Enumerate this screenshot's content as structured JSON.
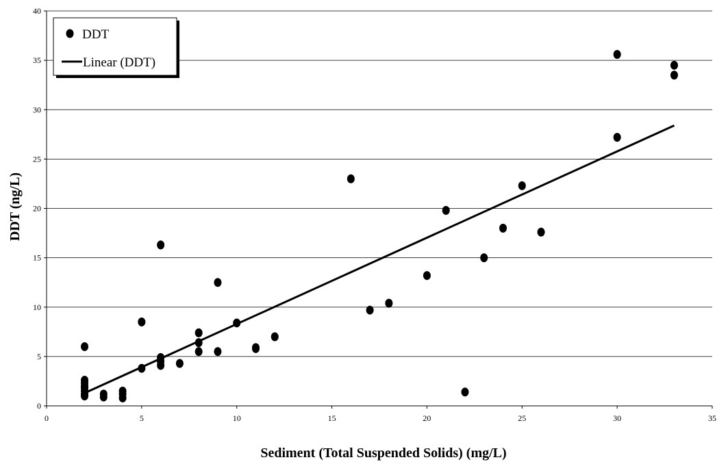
{
  "chart_data": {
    "type": "scatter",
    "xlabel": "Sediment (Total Suspended Solids) (mg/L)",
    "ylabel": "DDT (ng/L)",
    "xlim": [
      0,
      35
    ],
    "ylim": [
      0,
      40
    ],
    "x_ticks": [
      "0",
      "5",
      "10",
      "15",
      "20",
      "25",
      "30",
      "35"
    ],
    "y_ticks": [
      "0",
      "5",
      "10",
      "15",
      "20",
      "25",
      "30",
      "35",
      "40"
    ],
    "grid": "horizontal",
    "legend_position": "top-left",
    "series": [
      {
        "name": "DDT",
        "kind": "scatter",
        "color": "#000000",
        "points": [
          [
            2,
            6.0
          ],
          [
            2,
            2.6
          ],
          [
            2,
            2.3
          ],
          [
            2,
            2.0
          ],
          [
            2,
            1.8
          ],
          [
            2,
            1.5
          ],
          [
            2,
            1.2
          ],
          [
            2,
            1.0
          ],
          [
            3,
            1.2
          ],
          [
            3,
            0.9
          ],
          [
            4,
            1.5
          ],
          [
            4,
            1.2
          ],
          [
            4,
            0.8
          ],
          [
            5,
            8.5
          ],
          [
            5,
            3.8
          ],
          [
            6,
            16.3
          ],
          [
            6,
            4.9
          ],
          [
            6,
            4.5
          ],
          [
            6,
            4.1
          ],
          [
            7,
            4.3
          ],
          [
            8,
            7.4
          ],
          [
            8,
            6.4
          ],
          [
            8,
            5.5
          ],
          [
            9,
            12.5
          ],
          [
            9,
            5.5
          ],
          [
            10,
            8.4
          ],
          [
            11,
            5.9
          ],
          [
            11,
            5.8
          ],
          [
            12,
            7.0
          ],
          [
            16,
            23.0
          ],
          [
            17,
            9.7
          ],
          [
            18,
            10.4
          ],
          [
            20,
            13.2
          ],
          [
            21,
            19.8
          ],
          [
            22,
            1.4
          ],
          [
            23,
            15.0
          ],
          [
            24,
            18.0
          ],
          [
            25,
            22.3
          ],
          [
            26,
            17.6
          ],
          [
            30,
            35.6
          ],
          [
            30,
            27.2
          ],
          [
            33,
            34.5
          ],
          [
            33,
            33.5
          ]
        ]
      },
      {
        "name": "Linear (DDT)",
        "kind": "trendline",
        "color": "#000000",
        "x": [
          2,
          33
        ],
        "y": [
          1.3,
          28.4
        ]
      }
    ]
  }
}
